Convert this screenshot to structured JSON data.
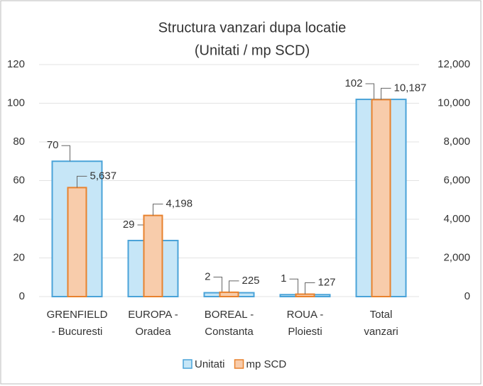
{
  "chart_data": {
    "type": "bar",
    "title": [
      "Structura vanzari dupa locatie",
      "(Unitati / mp SCD)"
    ],
    "categories": [
      [
        "GRENFIELD",
        "- Bucuresti"
      ],
      [
        "EUROPA -",
        "Oradea"
      ],
      [
        "BOREAL -",
        "Constanta"
      ],
      [
        "ROUA -",
        "Ploiesti"
      ],
      [
        "Total",
        "vanzari"
      ]
    ],
    "series": [
      {
        "name": "Unitati",
        "color": "#4aa3d8",
        "fill": "#c6e6f7",
        "values": [
          70,
          29,
          2,
          1,
          102
        ]
      },
      {
        "name": "mp SCD",
        "color": "#e8822e",
        "fill": "#f8ccab",
        "axis": "y2",
        "values": [
          5637,
          4198,
          225,
          127,
          10187
        ],
        "value_labels": [
          "5,637",
          "4,198",
          "225",
          "127",
          "10,187"
        ]
      }
    ],
    "ylim": [
      0,
      120
    ],
    "yticks": [
      0,
      20,
      40,
      60,
      80,
      100,
      120
    ],
    "y2lim": [
      0,
      12000
    ],
    "y2ticks": [
      0,
      {
        "value": 2000,
        "label": "2,000"
      },
      {
        "value": 4000,
        "label": "4,000"
      },
      {
        "value": 6000,
        "label": "6,000"
      },
      {
        "value": 8000,
        "label": "8,000"
      },
      {
        "value": 10000,
        "label": "10,000"
      },
      {
        "value": 12000,
        "label": "12,000"
      }
    ],
    "grid": true,
    "legend": "bottom"
  }
}
